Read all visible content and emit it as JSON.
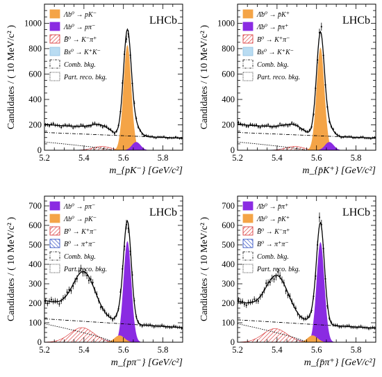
{
  "chart_data": [
    {
      "type": "line",
      "experiment_label": "LHCb",
      "xlabel": "m_{pK⁻} [GeV/c²]",
      "ylabel": "Candidates / ( 10 MeV/c² )",
      "xlim": [
        5.2,
        5.9
      ],
      "ylim": [
        0,
        1150
      ],
      "xticks": [
        "5.2",
        "5.4",
        "5.6",
        "5.8"
      ],
      "yticks": [
        "0",
        "200",
        "400",
        "600",
        "800",
        "1000"
      ],
      "legend_position": "top-left",
      "legend": [
        {
          "label": "Λb⁰ → pK⁻",
          "style": "fill",
          "color": "#f4a447"
        },
        {
          "label": "Λb⁰ → pπ⁻",
          "style": "fill",
          "color": "#8a2be2"
        },
        {
          "label": "B̄⁰ → K⁻π⁺",
          "style": "hatch-red",
          "color": "#d62728"
        },
        {
          "label": "Bs⁰ → K⁺K⁻",
          "style": "fill-light",
          "color": "#b9dcf2"
        },
        {
          "label": "Comb. bkg.",
          "style": "dashdot",
          "color": "#000000"
        },
        {
          "label": "Part. reco. bkg.",
          "style": "dotted",
          "color": "#000000"
        }
      ],
      "signal_peak": {
        "x": 5.62,
        "y": 1000
      },
      "components": {
        "peak1": {
          "mass": 5.62,
          "amplitude": 830,
          "width": 0.02,
          "color": "#f4a447"
        },
        "peak2": {
          "mass": 5.665,
          "amplitude": 65,
          "width": 0.022,
          "color": "#8a2be2"
        },
        "misid_red": {
          "mass": 5.49,
          "amplitude": 30,
          "width": 0.045
        },
        "misid_blue": {
          "mass": 5.48,
          "amplitude": 20,
          "width": 0.05
        },
        "combinatorial": {
          "at_xmin": 140,
          "at_xmax": 95
        },
        "part_reco": {
          "at_xmin": 65,
          "edge": 5.55
        }
      }
    },
    {
      "type": "line",
      "experiment_label": "LHCb",
      "xlabel": "m_{p̄K⁺} [GeV/c²]",
      "ylabel": "Candidates / ( 10 MeV/c² )",
      "xlim": [
        5.2,
        5.9
      ],
      "ylim": [
        0,
        1150
      ],
      "xticks": [
        "5.2",
        "5.4",
        "5.6",
        "5.8"
      ],
      "yticks": [
        "0",
        "200",
        "400",
        "600",
        "800",
        "1000"
      ],
      "legend_position": "top-left",
      "legend": [
        {
          "label": "Λ̄b⁰ → p̄K⁺",
          "style": "fill",
          "color": "#f4a447"
        },
        {
          "label": "Λ̄b⁰ → p̄π⁺",
          "style": "fill",
          "color": "#8a2be2"
        },
        {
          "label": "B⁰ → K⁺π⁻",
          "style": "hatch-red",
          "color": "#d62728"
        },
        {
          "label": "Bs⁰ → K⁺K⁻",
          "style": "fill-light",
          "color": "#b9dcf2"
        },
        {
          "label": "Comb. bkg.",
          "style": "dashdot",
          "color": "#000000"
        },
        {
          "label": "Part. reco. bkg.",
          "style": "dotted",
          "color": "#000000"
        }
      ],
      "signal_peak": {
        "x": 5.62,
        "y": 980
      },
      "components": {
        "peak1": {
          "mass": 5.62,
          "amplitude": 810,
          "width": 0.02,
          "color": "#f4a447"
        },
        "peak2": {
          "mass": 5.665,
          "amplitude": 65,
          "width": 0.022,
          "color": "#8a2be2"
        },
        "misid_red": {
          "mass": 5.49,
          "amplitude": 30,
          "width": 0.045
        },
        "misid_blue": {
          "mass": 5.48,
          "amplitude": 22,
          "width": 0.05
        },
        "combinatorial": {
          "at_xmin": 140,
          "at_xmax": 95
        },
        "part_reco": {
          "at_xmin": 65,
          "edge": 5.55
        }
      }
    },
    {
      "type": "line",
      "experiment_label": "LHCb",
      "xlabel": "m_{pπ⁻} [GeV/c²]",
      "ylabel": "Candidates / ( 10 MeV/c² )",
      "xlim": [
        5.2,
        5.9
      ],
      "ylim": [
        0,
        750
      ],
      "xticks": [
        "5.2",
        "5.4",
        "5.6",
        "5.8"
      ],
      "yticks": [
        "0",
        "100",
        "200",
        "300",
        "400",
        "500",
        "600",
        "700"
      ],
      "legend_position": "top-left",
      "legend": [
        {
          "label": "Λb⁰ → pπ⁻",
          "style": "fill",
          "color": "#8a2be2"
        },
        {
          "label": "Λb⁰ → pK⁻",
          "style": "fill",
          "color": "#f4a447"
        },
        {
          "label": "B⁰ → K⁺π⁻",
          "style": "hatch-red",
          "color": "#d62728"
        },
        {
          "label": "B⁰ → π⁺π⁻",
          "style": "hatch-blue",
          "color": "#1f3fbf"
        },
        {
          "label": "Comb. bkg.",
          "style": "dashdot",
          "color": "#000000"
        },
        {
          "label": "Part. reco. bkg.",
          "style": "dotted",
          "color": "#000000"
        }
      ],
      "signal_peak": {
        "x": 5.62,
        "y": 660
      },
      "components": {
        "peak1": {
          "mass": 5.62,
          "amplitude": 520,
          "width": 0.02,
          "color": "#8a2be2"
        },
        "peak2": {
          "mass": 5.58,
          "amplitude": 35,
          "width": 0.025,
          "color": "#f4a447"
        },
        "misid_red": {
          "mass": 5.39,
          "amplitude": 75,
          "width": 0.06
        },
        "misid_blue": {
          "mass": 5.45,
          "amplitude": 22,
          "width": 0.05
        },
        "combinatorial": {
          "at_xmin": 120,
          "at_xmax": 75
        },
        "part_reco": {
          "at_xmin": 95,
          "edge": 5.55
        }
      }
    },
    {
      "type": "line",
      "experiment_label": "LHCb",
      "xlabel": "m_{p̄π⁺} [GeV/c²]",
      "ylabel": "Candidates / ( 10 MeV/c² )",
      "xlim": [
        5.2,
        5.9
      ],
      "ylim": [
        0,
        750
      ],
      "xticks": [
        "5.2",
        "5.4",
        "5.6",
        "5.8"
      ],
      "yticks": [
        "0",
        "100",
        "200",
        "300",
        "400",
        "500",
        "600",
        "700"
      ],
      "legend_position": "top-left",
      "legend": [
        {
          "label": "Λ̄b⁰ → p̄π⁺",
          "style": "fill",
          "color": "#8a2be2"
        },
        {
          "label": "Λ̄b⁰ → p̄K⁺",
          "style": "fill",
          "color": "#f4a447"
        },
        {
          "label": "B̄⁰ → K⁻π⁺",
          "style": "hatch-red",
          "color": "#d62728"
        },
        {
          "label": "B⁰ → π⁺π⁻",
          "style": "hatch-blue",
          "color": "#1f3fbf"
        },
        {
          "label": "Comb. bkg.",
          "style": "dashdot",
          "color": "#000000"
        },
        {
          "label": "Part. reco. bkg.",
          "style": "dotted",
          "color": "#000000"
        }
      ],
      "signal_peak": {
        "x": 5.62,
        "y": 630
      },
      "components": {
        "peak1": {
          "mass": 5.62,
          "amplitude": 515,
          "width": 0.02,
          "color": "#8a2be2"
        },
        "peak2": {
          "mass": 5.58,
          "amplitude": 35,
          "width": 0.025,
          "color": "#f4a447"
        },
        "misid_red": {
          "mass": 5.39,
          "amplitude": 70,
          "width": 0.06
        },
        "misid_blue": {
          "mass": 5.45,
          "amplitude": 22,
          "width": 0.05
        },
        "combinatorial": {
          "at_xmin": 115,
          "at_xmax": 72
        },
        "part_reco": {
          "at_xmin": 95,
          "edge": 5.55
        }
      }
    }
  ]
}
